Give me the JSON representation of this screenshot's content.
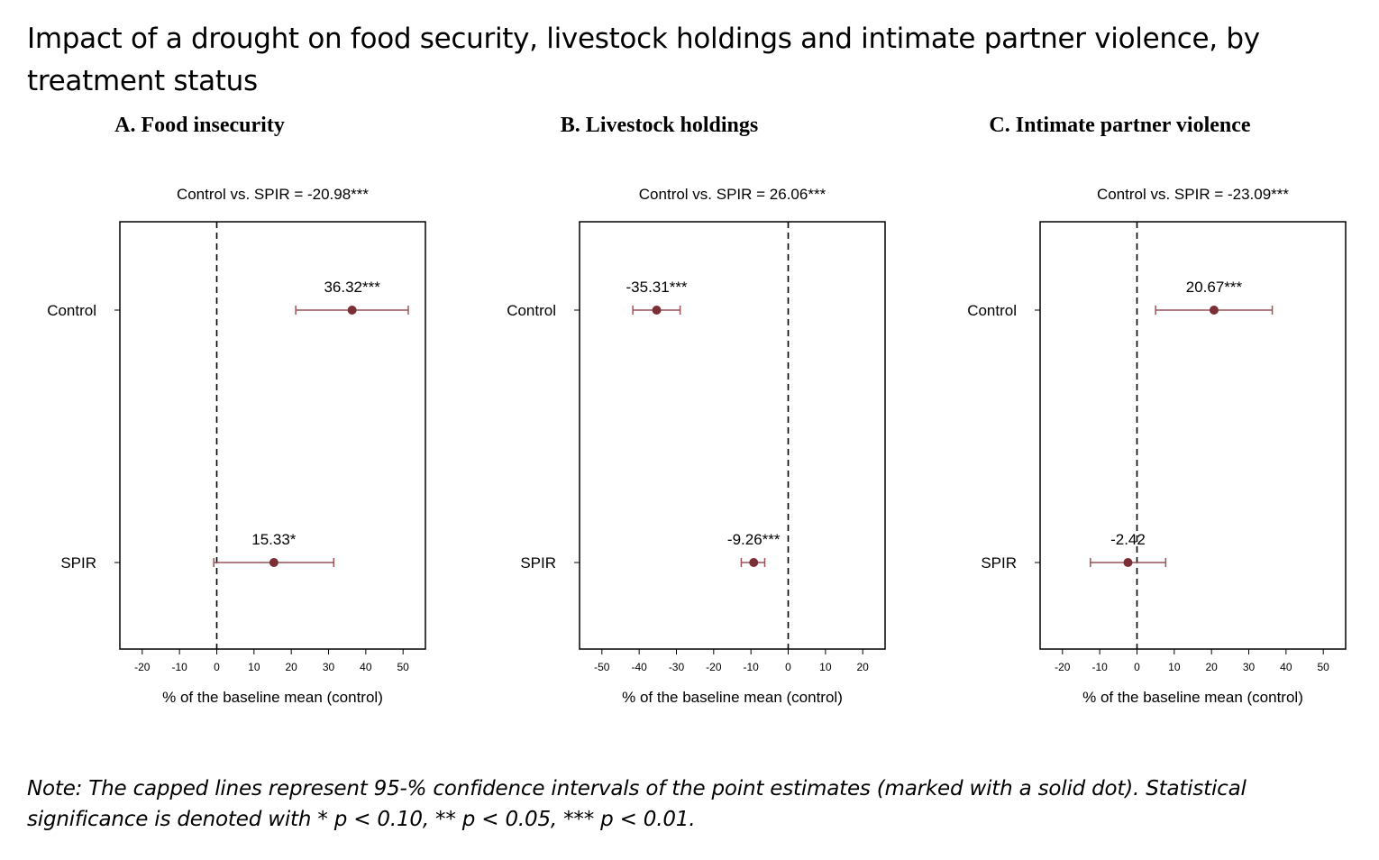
{
  "title": "Impact of a drought on food security, livestock holdings and intimate partner violence, by treatment status",
  "note": "Note: The capped lines represent 95-% confidence intervals of the point estimates (marked with a solid dot). Statistical significance is denoted with * p < 0.10, ** p < 0.05, *** p < 0.01.",
  "colors": {
    "marker": "#7a2f35",
    "ci_line": "#9c5258",
    "axis": "#000000"
  },
  "chart_data": [
    {
      "type": "scatter",
      "panel_title": "A. Food insecurity",
      "comparison": "Control vs. SPIR = -20.98***",
      "xlabel": "% of the baseline mean (control)",
      "xlim": [
        -26,
        56
      ],
      "xticks": [
        -20,
        -10,
        0,
        10,
        20,
        30,
        40,
        50
      ],
      "reference_line": 0,
      "categories": [
        "Control",
        "SPIR"
      ],
      "estimates": [
        36.32,
        15.33
      ],
      "ci_low": [
        21.2,
        -0.8
      ],
      "ci_high": [
        51.4,
        31.4
      ],
      "labels": [
        "36.32***",
        "15.33*"
      ]
    },
    {
      "type": "scatter",
      "panel_title": "B. Livestock holdings",
      "comparison": "Control vs. SPIR = 26.06***",
      "xlabel": "% of the baseline mean (control)",
      "xlim": [
        -56,
        26
      ],
      "xticks": [
        -50,
        -40,
        -30,
        -20,
        -10,
        0,
        10,
        20
      ],
      "reference_line": 0,
      "categories": [
        "Control",
        "SPIR"
      ],
      "estimates": [
        -35.31,
        -9.26
      ],
      "ci_low": [
        -41.7,
        -12.6
      ],
      "ci_high": [
        -29.0,
        -6.3
      ],
      "labels": [
        "-35.31***",
        "-9.26***"
      ]
    },
    {
      "type": "scatter",
      "panel_title": "C. Intimate partner violence",
      "comparison": "Control vs. SPIR = -23.09***",
      "xlabel": "% of the baseline mean (control)",
      "xlim": [
        -26,
        56
      ],
      "xticks": [
        -20,
        -10,
        0,
        10,
        20,
        30,
        40,
        50
      ],
      "reference_line": 0,
      "categories": [
        "Control",
        "SPIR"
      ],
      "estimates": [
        20.67,
        -2.42
      ],
      "ci_low": [
        5.0,
        -12.5
      ],
      "ci_high": [
        36.3,
        7.7
      ],
      "labels": [
        "20.67***",
        "-2.42"
      ]
    }
  ]
}
